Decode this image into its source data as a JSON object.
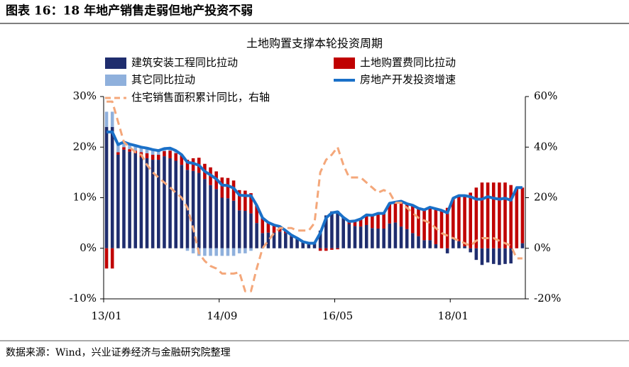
{
  "figure_title": "图表 16：18 年地产销售走弱但地产投资不弱",
  "source": "数据来源：Wind，兴业证券经济与金融研究院整理",
  "chart_data": {
    "type": "bar",
    "title": "土地购置支撑本轮投资周期",
    "categories": [
      "13/01",
      null,
      null,
      null,
      null,
      null,
      null,
      null,
      null,
      null,
      null,
      null,
      null,
      null,
      null,
      null,
      null,
      null,
      null,
      null,
      "14/09",
      null,
      null,
      null,
      null,
      null,
      null,
      null,
      null,
      null,
      null,
      null,
      null,
      null,
      null,
      null,
      null,
      null,
      null,
      null,
      "16/05",
      null,
      null,
      null,
      null,
      null,
      null,
      null,
      null,
      null,
      null,
      null,
      null,
      null,
      null,
      null,
      null,
      null,
      null,
      null,
      "18/01",
      null,
      null,
      null,
      null,
      null,
      null,
      null,
      null,
      null,
      null,
      null,
      null
    ],
    "ylim": [
      -10,
      30
    ],
    "yticks": [
      {
        "value": -10,
        "label": "-10%"
      },
      {
        "value": 0,
        "label": "0%"
      },
      {
        "value": 10,
        "label": "10%"
      },
      {
        "value": 20,
        "label": "20%"
      },
      {
        "value": 30,
        "label": "30%"
      }
    ],
    "y2lim": [
      -20,
      60
    ],
    "y2ticks": [
      {
        "value": -20,
        "label": "-20%"
      },
      {
        "value": 0,
        "label": "0%"
      },
      {
        "value": 20,
        "label": "20%"
      },
      {
        "value": 40,
        "label": "40%"
      },
      {
        "value": 60,
        "label": "60%"
      }
    ],
    "series": [
      {
        "name": "建筑安装工程同比拉动",
        "type": "bar",
        "color": "#1f2d6e",
        "values": [
          24,
          24,
          18.5,
          19.5,
          19.1,
          18.8,
          18,
          17.8,
          17.5,
          17.5,
          18.2,
          17.8,
          17.3,
          16.5,
          15.5,
          15.3,
          14.9,
          13.7,
          12.5,
          11.7,
          10,
          9.9,
          9.4,
          7.5,
          7.4,
          6.9,
          5,
          3,
          3.1,
          3.1,
          3.3,
          3,
          2.3,
          1.8,
          1.1,
          0.8,
          1,
          3.5,
          6.5,
          7.3,
          7.4,
          6.1,
          4.8,
          4.4,
          4.3,
          4.6,
          4,
          3.9,
          3.9,
          4.9,
          5.1,
          4.3,
          3.8,
          3,
          2.4,
          1.6,
          1.6,
          0.8,
          0,
          -1,
          1.9,
          1.4,
          0.4,
          -0.8,
          -2.3,
          -3.3,
          -2.8,
          -3.1,
          -3.3,
          -3.1,
          -3,
          0,
          1
        ]
      },
      {
        "name": "土地购置费同比拉动",
        "type": "bar",
        "color": "#c00000",
        "values": [
          -4,
          -4,
          0.5,
          0.5,
          0.5,
          0.5,
          1,
          1,
          1,
          1,
          1,
          1.5,
          1.5,
          2,
          2,
          2.5,
          3,
          3,
          3.5,
          3.5,
          4,
          4,
          4,
          4,
          4,
          4,
          3.5,
          3,
          2,
          1.5,
          1,
          0.5,
          0.3,
          0.2,
          0.2,
          0.2,
          0,
          -0.5,
          -0.5,
          -0.3,
          -0.2,
          0,
          0.5,
          1,
          1.5,
          2,
          2.5,
          3,
          3,
          4,
          4,
          5,
          5,
          5.5,
          5.5,
          6,
          6.5,
          7,
          7.5,
          8,
          8,
          9,
          10,
          11,
          12,
          13,
          13,
          13,
          13,
          13,
          12.5,
          12,
          11
        ]
      },
      {
        "name": "其它同比拉动",
        "type": "bar",
        "color": "#8fb0dc",
        "values": [
          3,
          3,
          1.5,
          1,
          1,
          1,
          1,
          1,
          1,
          0.8,
          0.5,
          0.5,
          0.5,
          0,
          -0.5,
          -1,
          -1.5,
          -1.5,
          -1.5,
          -1.5,
          -1.5,
          -1.5,
          -1.5,
          -1,
          -1,
          -0.5,
          0,
          0,
          0,
          0,
          0,
          0,
          0,
          0,
          0,
          0,
          0,
          0,
          0,
          0,
          0,
          0,
          0,
          0,
          0,
          0,
          0,
          0,
          0,
          0,
          0,
          0,
          0,
          0,
          0,
          0,
          0,
          0,
          0,
          0,
          0,
          0,
          0,
          0,
          0,
          0,
          0,
          0,
          0,
          0,
          0,
          0,
          0
        ]
      },
      {
        "name": "房地产开发投资增速",
        "type": "line",
        "color": "#1a70c8",
        "values": [
          23,
          23,
          20.5,
          21,
          20.6,
          20.3,
          20,
          19.8,
          19.5,
          19.3,
          19.7,
          19.8,
          19.3,
          18.5,
          17,
          16.8,
          16.4,
          15.2,
          14.5,
          13.7,
          12.5,
          12.4,
          11.9,
          10.5,
          10.4,
          10.4,
          8.5,
          6,
          5.1,
          4.6,
          4.3,
          3.5,
          2.6,
          2,
          1.3,
          1,
          1,
          3,
          6,
          7,
          7.2,
          6.1,
          5.3,
          5.4,
          5.8,
          6.6,
          6.5,
          6.9,
          6.9,
          8.9,
          9.1,
          9.3,
          8.8,
          8.5,
          7.9,
          7.6,
          8.1,
          7.8,
          7.5,
          7,
          9.9,
          10.4,
          10.4,
          10.2,
          9.7,
          9.7,
          10.2,
          9.9,
          9.7,
          9.9,
          9.5,
          12,
          12
        ]
      },
      {
        "name": "住宅销售面积累计同比，右轴",
        "type": "line",
        "axis": "y2",
        "dashed": true,
        "color": "#f4a77a",
        "values": [
          58,
          58,
          50,
          42,
          40,
          38,
          37,
          33,
          30,
          28,
          26,
          24,
          22,
          20,
          16,
          8,
          -2,
          -5,
          -7,
          -8,
          -10,
          -10,
          -10,
          -9.5,
          -17,
          -17,
          -8,
          0,
          3,
          6,
          8,
          8,
          8,
          7,
          7,
          7,
          10,
          30,
          35,
          37,
          40,
          33,
          28,
          28,
          28,
          26,
          24,
          22,
          23,
          22,
          18,
          18,
          16,
          14,
          12,
          11,
          10,
          8,
          6,
          5,
          4,
          3,
          2,
          1,
          3,
          4,
          4,
          4,
          3,
          2,
          1,
          -4,
          -4
        ]
      }
    ]
  }
}
